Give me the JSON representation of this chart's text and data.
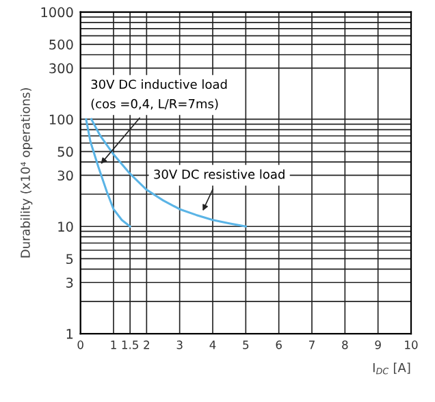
{
  "chart_data": {
    "type": "line",
    "xlabel": "I$_{DC}$ [A]",
    "ylabel": "Durability (x10⁴ operations)",
    "log": "y",
    "xlim": [
      0,
      10
    ],
    "ylim": [
      1,
      1000
    ],
    "xticks": [
      0,
      1,
      1.5,
      2,
      3,
      4,
      5,
      6,
      7,
      8,
      9,
      10
    ],
    "yticks": [
      1,
      {
        "value": 2,
        "label": null
      },
      3,
      {
        "value": 4,
        "label": null
      },
      5,
      {
        "value": 6,
        "label": null
      },
      {
        "value": 7,
        "label": null
      },
      {
        "value": 8,
        "label": null
      },
      {
        "value": 9,
        "label": null
      },
      10,
      {
        "value": 20,
        "label": null
      },
      30,
      {
        "value": 40,
        "label": null
      },
      50,
      {
        "value": 60,
        "label": null
      },
      {
        "value": 70,
        "label": null
      },
      {
        "value": 80,
        "label": null
      },
      {
        "value": 90,
        "label": null
      },
      100,
      300,
      {
        "value": 400,
        "label": null
      },
      500,
      {
        "value": 600,
        "label": null
      },
      {
        "value": 700,
        "label": null
      },
      {
        "value": 800,
        "label": null
      },
      {
        "value": 900,
        "label": null
      },
      1000
    ],
    "grid": true,
    "marker": "none",
    "line_style": "solid",
    "series": [
      {
        "color": "#5ab4e6",
        "x": [
          0.17,
          0.3,
          0.54,
          0.8,
          1,
          1.25,
          1.5
        ],
        "values": [
          100,
          62,
          36,
          21,
          14.5,
          11.5,
          10
        ]
      },
      {
        "color": "#5ab4e6",
        "x": [
          0.33,
          0.6,
          1,
          1.5,
          2,
          2.5,
          3,
          3.5,
          4,
          4.5,
          5
        ],
        "values": [
          100,
          70,
          47,
          31,
          22,
          17.5,
          14.5,
          12.8,
          11.5,
          10.7,
          10
        ]
      }
    ],
    "annotations": [
      {
        "text": "30V DC inductive load\n(cos =0,4, L/R=7ms)",
        "x": 0.54,
        "y": 36
      },
      {
        "text": "30V DC resistive load",
        "x": 3.65,
        "y": 13
      }
    ]
  }
}
